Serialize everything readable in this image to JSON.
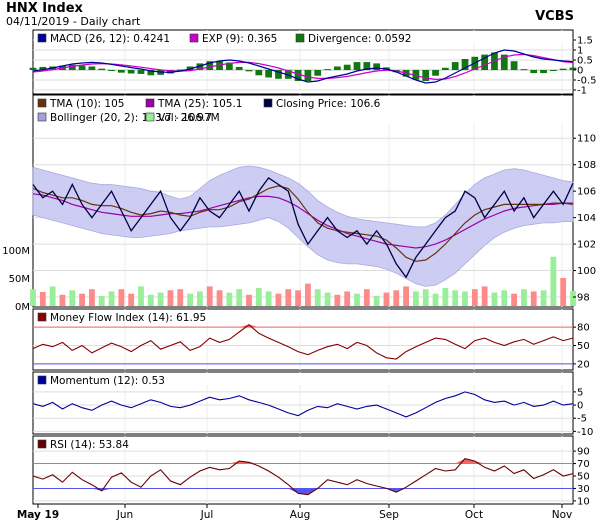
{
  "header": {
    "title": "HNX Index",
    "subtitle": "04/11/2019 - Daily chart",
    "brand": "VCBS"
  },
  "colors": {
    "macd": "#000099",
    "exp": "#cc00cc",
    "divergence": "#117711",
    "tma10": "#663311",
    "tma25": "#9900aa",
    "close": "#000044",
    "bollinger_fill": "#c8c8f2",
    "bollinger_line": "#a0a0e0",
    "volume": "#99ee99",
    "volume_alt": "#ff8888",
    "mfi": "#880000",
    "momentum": "#000099",
    "rsi": "#660000",
    "overbought": "#ee6666",
    "oversold": "#5555ee"
  },
  "chart_data": [
    {
      "type": "line",
      "panel": "macd",
      "legend": [
        {
          "label": "MACD (26, 12): 0.4241",
          "color": "#000099"
        },
        {
          "label": "EXP (9): 0.365",
          "color": "#cc00cc"
        },
        {
          "label": "Divergence: 0.0592",
          "color": "#117711"
        }
      ],
      "ylim": [
        -1.2,
        1.5
      ],
      "yticks": [
        "1.5",
        "1",
        "0.5",
        "0",
        "-0.5",
        "-1"
      ],
      "ytick_values": [
        1.5,
        1,
        0.5,
        0,
        -0.5,
        -1
      ],
      "macd": [
        -0.05,
        0.02,
        0.1,
        0.2,
        0.3,
        0.35,
        0.38,
        0.35,
        0.28,
        0.2,
        0.12,
        0.05,
        -0.05,
        -0.1,
        -0.12,
        -0.05,
        0.05,
        0.2,
        0.35,
        0.45,
        0.5,
        0.45,
        0.35,
        0.2,
        0.05,
        -0.1,
        -0.25,
        -0.45,
        -0.6,
        -0.55,
        -0.4,
        -0.3,
        -0.2,
        -0.05,
        0.05,
        0.1,
        0.05,
        -0.1,
        -0.3,
        -0.5,
        -0.65,
        -0.6,
        -0.4,
        -0.15,
        0.1,
        0.35,
        0.6,
        0.85,
        1.0,
        0.95,
        0.8,
        0.65,
        0.55,
        0.5,
        0.45,
        0.42
      ],
      "exp": [
        -0.1,
        -0.05,
        0.02,
        0.1,
        0.18,
        0.25,
        0.3,
        0.32,
        0.3,
        0.26,
        0.2,
        0.14,
        0.07,
        0.01,
        -0.04,
        -0.06,
        -0.03,
        0.05,
        0.15,
        0.25,
        0.33,
        0.38,
        0.38,
        0.32,
        0.22,
        0.1,
        -0.05,
        -0.2,
        -0.35,
        -0.42,
        -0.42,
        -0.38,
        -0.32,
        -0.23,
        -0.13,
        -0.05,
        -0.01,
        -0.05,
        -0.15,
        -0.28,
        -0.4,
        -0.47,
        -0.45,
        -0.33,
        -0.15,
        0.05,
        0.25,
        0.45,
        0.65,
        0.75,
        0.78,
        0.72,
        0.62,
        0.52,
        0.42,
        0.365
      ],
      "axis_labels": [
        "May 19",
        "Jun",
        "Jul",
        "Aug",
        "Sep",
        "Oct",
        "Nov"
      ]
    },
    {
      "type": "line",
      "panel": "price",
      "legend": [
        {
          "label": "TMA (10): 105",
          "color": "#663311"
        },
        {
          "label": "TMA (25): 105.1",
          "color": "#9900aa"
        },
        {
          "label": "Closing Price: 106.6",
          "color": "#000044"
        },
        {
          "label": "Bollinger (20, 2): 103.7 - 106.7",
          "color": "#a0a0e0"
        },
        {
          "label": "Vol: 26.97M",
          "color": "#99ee99"
        }
      ],
      "ylim": [
        98,
        111
      ],
      "yticks": [
        "110",
        "108",
        "106",
        "104",
        "102",
        "100",
        "98"
      ],
      "ytick_values": [
        110,
        108,
        106,
        104,
        102,
        100,
        98
      ],
      "volume_ticks": [
        "100M",
        "50M",
        "0M"
      ],
      "volume_tick_values": [
        100,
        50,
        0
      ],
      "close": [
        106.5,
        105.5,
        106,
        105,
        106.5,
        105,
        104,
        105,
        106,
        104.5,
        103,
        104,
        105,
        106,
        104,
        103,
        104,
        105.5,
        104.5,
        104,
        105,
        106,
        104.5,
        106,
        107,
        106.5,
        106,
        103.5,
        102,
        103,
        104,
        103,
        102.5,
        103,
        102,
        103,
        102,
        100.5,
        99.5,
        101,
        102,
        103,
        104,
        104.5,
        106,
        105.5,
        104,
        105,
        106,
        104.5,
        105.5,
        104,
        105,
        106,
        105,
        106.6
      ],
      "tma10": [
        106.2,
        105.9,
        105.7,
        105.5,
        105.5,
        105.3,
        105,
        104.9,
        104.9,
        104.7,
        104.4,
        104.2,
        104.3,
        104.5,
        104.4,
        104.2,
        104.1,
        104.4,
        104.6,
        104.6,
        104.8,
        105.2,
        105.4,
        105.8,
        106.2,
        106.4,
        106.2,
        105.4,
        104.4,
        103.6,
        103.2,
        103,
        102.9,
        102.8,
        102.7,
        102.6,
        102.3,
        101.7,
        101,
        100.7,
        100.8,
        101.3,
        102,
        102.8,
        103.6,
        104.2,
        104.6,
        104.8,
        105,
        105,
        105,
        105,
        105,
        105.1,
        105.1,
        105
      ],
      "tma25": [
        105.8,
        105.7,
        105.5,
        105.3,
        105,
        104.8,
        104.6,
        104.4,
        104.3,
        104.2,
        104.1,
        104.1,
        104.1,
        104.2,
        104.3,
        104.3,
        104.4,
        104.5,
        104.7,
        104.9,
        105.1,
        105.3,
        105.5,
        105.6,
        105.6,
        105.5,
        105.2,
        104.8,
        104.3,
        103.8,
        103.4,
        103.1,
        102.8,
        102.6,
        102.4,
        102.2,
        102,
        101.9,
        101.8,
        101.7,
        101.8,
        102,
        102.3,
        102.7,
        103.1,
        103.5,
        103.9,
        104.2,
        104.5,
        104.7,
        104.8,
        104.9,
        105,
        105,
        105.1,
        105.1
      ],
      "upper": [
        107.8,
        107.6,
        107.4,
        107.2,
        107,
        106.8,
        106.6,
        106.5,
        106.5,
        106.4,
        106.3,
        106.2,
        106,
        105.9,
        105.6,
        105.4,
        105.6,
        106.2,
        106.8,
        107.2,
        107.5,
        107.8,
        107.9,
        107.8,
        107.6,
        107.3,
        107,
        106.6,
        106,
        105.3,
        104.8,
        104.4,
        104.1,
        103.9,
        103.8,
        103.7,
        103.6,
        103.5,
        103.4,
        103.3,
        103.3,
        103.6,
        104.2,
        105,
        105.8,
        106.5,
        107,
        107.3,
        107.6,
        107.7,
        107.6,
        107.4,
        107.2,
        107,
        106.8,
        106.7
      ],
      "lower": [
        104.2,
        104,
        103.8,
        103.6,
        103.4,
        103.2,
        103,
        102.8,
        102.7,
        102.6,
        102.5,
        102.5,
        102.6,
        102.7,
        102.8,
        103,
        103.1,
        103.2,
        103.3,
        103.3,
        103.4,
        103.5,
        103.6,
        103.8,
        104,
        103.7,
        103.2,
        102.5,
        101.8,
        101.2,
        100.8,
        100.6,
        100.5,
        100.5,
        100.4,
        100.3,
        100.1,
        99.8,
        99.4,
        99,
        98.8,
        98.9,
        99.3,
        99.8,
        100.5,
        101.2,
        101.9,
        102.5,
        102.9,
        103.2,
        103.4,
        103.5,
        103.6,
        103.6,
        103.7,
        103.7
      ],
      "volume": [
        30,
        25,
        35,
        20,
        28,
        22,
        30,
        18,
        26,
        30,
        22,
        35,
        20,
        24,
        28,
        30,
        22,
        26,
        35,
        28,
        24,
        30,
        20,
        32,
        26,
        22,
        30,
        28,
        40,
        30,
        24,
        20,
        26,
        22,
        30,
        18,
        24,
        28,
        35,
        26,
        30,
        22,
        32,
        28,
        26,
        30,
        35,
        24,
        28,
        22,
        30,
        26,
        28,
        88,
        50,
        26.97
      ]
    },
    {
      "type": "line",
      "panel": "mfi",
      "legend": [
        {
          "label": "Money Flow Index (14): 61.95",
          "color": "#880000"
        }
      ],
      "ylim": [
        10,
        90
      ],
      "yticks": [
        "80",
        "50",
        "20"
      ],
      "ytick_values": [
        80,
        50,
        20
      ],
      "overbought": 80,
      "oversold": 20,
      "values": [
        45,
        52,
        48,
        55,
        42,
        50,
        38,
        46,
        54,
        48,
        40,
        50,
        58,
        44,
        50,
        56,
        42,
        48,
        62,
        55,
        60,
        72,
        84,
        70,
        62,
        55,
        48,
        40,
        35,
        42,
        48,
        52,
        45,
        55,
        50,
        38,
        30,
        28,
        40,
        48,
        55,
        62,
        60,
        52,
        45,
        58,
        62,
        55,
        50,
        56,
        60,
        52,
        58,
        64,
        58,
        62
      ]
    },
    {
      "type": "line",
      "panel": "momentum",
      "legend": [
        {
          "label": "Momentum (12): 0.53",
          "color": "#000099"
        }
      ],
      "ylim": [
        -11,
        8
      ],
      "yticks": [
        "5",
        "0",
        "-5",
        "-10"
      ],
      "ytick_values": [
        5,
        0,
        -5,
        -10
      ],
      "values": [
        0.5,
        -0.5,
        1,
        -1.5,
        0.5,
        -1,
        -2,
        0,
        1.5,
        0,
        -1,
        0.5,
        2,
        1,
        -0.5,
        -1,
        0,
        1.5,
        3,
        2,
        2.5,
        3.5,
        2,
        1,
        0,
        -1.5,
        -3,
        -4,
        -2,
        -0.5,
        -1,
        0.5,
        -0.5,
        -1.5,
        -0.5,
        0,
        -1.5,
        -3,
        -4.5,
        -3,
        -1,
        1,
        2.5,
        3.5,
        5,
        4,
        2,
        1,
        1.5,
        0,
        1,
        -0.5,
        0,
        1.5,
        0,
        0.53
      ]
    },
    {
      "type": "line",
      "panel": "rsi",
      "legend": [
        {
          "label": "RSI (14): 53.84",
          "color": "#660000"
        }
      ],
      "ylim": [
        5,
        95
      ],
      "yticks": [
        "90",
        "70",
        "50",
        "30",
        "10"
      ],
      "ytick_values": [
        90,
        70,
        50,
        30,
        10
      ],
      "overbought": 70,
      "oversold": 30,
      "values": [
        50,
        45,
        52,
        40,
        56,
        44,
        36,
        26,
        48,
        55,
        40,
        32,
        50,
        60,
        42,
        36,
        48,
        58,
        64,
        60,
        62,
        74,
        72,
        66,
        58,
        48,
        36,
        22,
        20,
        30,
        44,
        40,
        36,
        44,
        38,
        34,
        30,
        24,
        32,
        42,
        52,
        62,
        58,
        60,
        78,
        74,
        64,
        58,
        66,
        54,
        60,
        46,
        52,
        60,
        50,
        53.84
      ]
    }
  ]
}
